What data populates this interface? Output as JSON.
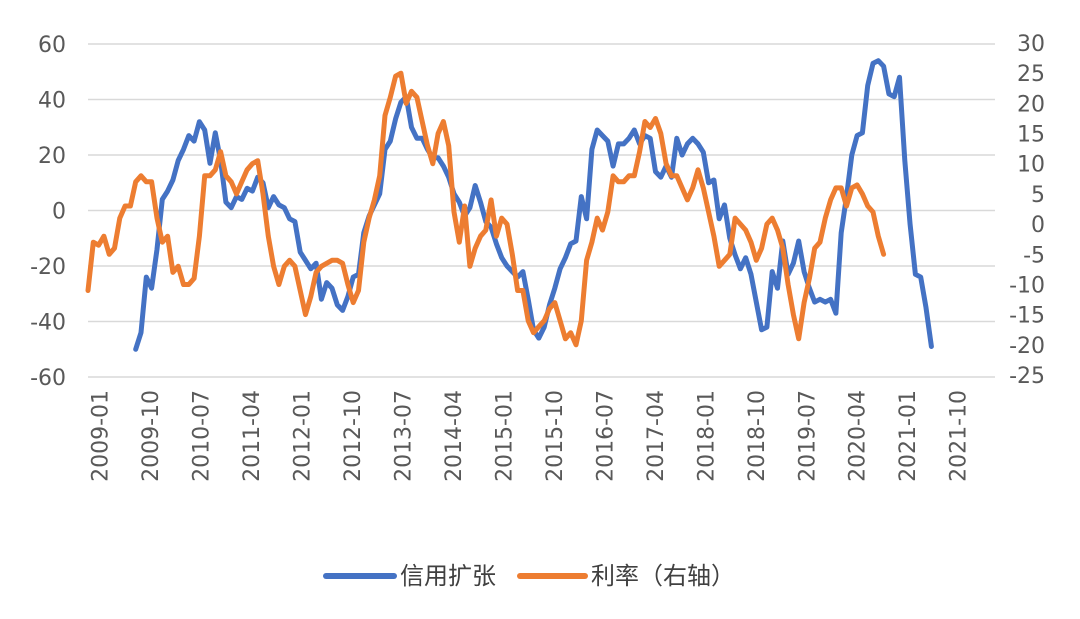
{
  "chart_data": {
    "type": "line",
    "title": "",
    "x_ticks": [
      "2009-01",
      "2009-10",
      "2010-07",
      "2011-04",
      "2012-01",
      "2012-10",
      "2013-07",
      "2014-04",
      "2015-01",
      "2015-10",
      "2016-07",
      "2017-04",
      "2018-01",
      "2018-10",
      "2019-07",
      "2020-04",
      "2021-01",
      "2021-10"
    ],
    "x_range": [
      0,
      171
    ],
    "y_left": {
      "ticks": [
        60,
        40,
        20,
        0,
        -20,
        -40,
        -60
      ],
      "range": [
        -60,
        60
      ]
    },
    "y_right": {
      "ticks": [
        30,
        25,
        20,
        15,
        10,
        5,
        0,
        -5,
        -10,
        -15,
        -20,
        -25
      ],
      "range": [
        -25,
        30
      ]
    },
    "grid": true,
    "legend_position": "bottom",
    "series": [
      {
        "name": "信用扩张",
        "axis": "left",
        "color": "#4472C4",
        "points": [
          [
            9,
            -50
          ],
          [
            10,
            -44
          ],
          [
            11,
            -24
          ],
          [
            12,
            -28
          ],
          [
            13,
            -14
          ],
          [
            14,
            4
          ],
          [
            15,
            7
          ],
          [
            16,
            11
          ],
          [
            17,
            18
          ],
          [
            18,
            22
          ],
          [
            19,
            27
          ],
          [
            20,
            25
          ],
          [
            21,
            32
          ],
          [
            22,
            29
          ],
          [
            23,
            17
          ],
          [
            24,
            28
          ],
          [
            25,
            18
          ],
          [
            26,
            3
          ],
          [
            27,
            1
          ],
          [
            28,
            5
          ],
          [
            29,
            4
          ],
          [
            30,
            8
          ],
          [
            31,
            7
          ],
          [
            32,
            12
          ],
          [
            33,
            10
          ],
          [
            34,
            1
          ],
          [
            35,
            5
          ],
          [
            36,
            2
          ],
          [
            37,
            1
          ],
          [
            38,
            -3
          ],
          [
            39,
            -4
          ],
          [
            40,
            -15
          ],
          [
            41,
            -18
          ],
          [
            42,
            -21
          ],
          [
            43,
            -19
          ],
          [
            44,
            -32
          ],
          [
            45,
            -26
          ],
          [
            46,
            -28
          ],
          [
            47,
            -34
          ],
          [
            48,
            -36
          ],
          [
            49,
            -31
          ],
          [
            50,
            -24
          ],
          [
            51,
            -23
          ],
          [
            52,
            -8
          ],
          [
            53,
            -2
          ],
          [
            54,
            2
          ],
          [
            55,
            6
          ],
          [
            56,
            22
          ],
          [
            57,
            25
          ],
          [
            58,
            33
          ],
          [
            59,
            39
          ],
          [
            60,
            41
          ],
          [
            61,
            30
          ],
          [
            62,
            26
          ],
          [
            63,
            26
          ],
          [
            64,
            22
          ],
          [
            65,
            19
          ],
          [
            66,
            19
          ],
          [
            67,
            16
          ],
          [
            68,
            12
          ],
          [
            69,
            6
          ],
          [
            70,
            3
          ],
          [
            71,
            -2
          ],
          [
            72,
            1
          ],
          [
            73,
            9
          ],
          [
            74,
            3
          ],
          [
            75,
            -4
          ],
          [
            76,
            -6
          ],
          [
            77,
            -12
          ],
          [
            78,
            -17
          ],
          [
            79,
            -20
          ],
          [
            80,
            -22
          ],
          [
            81,
            -24
          ],
          [
            82,
            -22
          ],
          [
            83,
            -32
          ],
          [
            84,
            -43
          ],
          [
            85,
            -46
          ],
          [
            86,
            -42
          ],
          [
            87,
            -34
          ],
          [
            88,
            -28
          ],
          [
            89,
            -21
          ],
          [
            90,
            -17
          ],
          [
            91,
            -12
          ],
          [
            92,
            -11
          ],
          [
            93,
            5
          ],
          [
            94,
            -3
          ],
          [
            95,
            22
          ],
          [
            96,
            29
          ],
          [
            97,
            27
          ],
          [
            98,
            25
          ],
          [
            99,
            16
          ],
          [
            100,
            24
          ],
          [
            101,
            24
          ],
          [
            102,
            26
          ],
          [
            103,
            29
          ],
          [
            104,
            24
          ],
          [
            105,
            27
          ],
          [
            106,
            26
          ],
          [
            107,
            14
          ],
          [
            108,
            12
          ],
          [
            109,
            16
          ],
          [
            110,
            12
          ],
          [
            111,
            26
          ],
          [
            112,
            20
          ],
          [
            113,
            24
          ],
          [
            114,
            26
          ],
          [
            115,
            24
          ],
          [
            116,
            21
          ],
          [
            117,
            10
          ],
          [
            118,
            11
          ],
          [
            119,
            -3
          ],
          [
            120,
            2
          ],
          [
            121,
            -10
          ],
          [
            122,
            -16
          ],
          [
            123,
            -21
          ],
          [
            124,
            -17
          ],
          [
            125,
            -23
          ],
          [
            126,
            -33
          ],
          [
            127,
            -43
          ],
          [
            128,
            -42
          ],
          [
            129,
            -22
          ],
          [
            130,
            -28
          ],
          [
            131,
            -11
          ],
          [
            132,
            -23
          ],
          [
            133,
            -19
          ],
          [
            134,
            -11
          ],
          [
            135,
            -22
          ],
          [
            136,
            -28
          ],
          [
            137,
            -33
          ],
          [
            138,
            -32
          ],
          [
            139,
            -33
          ],
          [
            140,
            -32
          ],
          [
            141,
            -37
          ],
          [
            142,
            -8
          ],
          [
            143,
            5
          ],
          [
            144,
            20
          ],
          [
            145,
            27
          ],
          [
            146,
            28
          ],
          [
            147,
            45
          ],
          [
            148,
            53
          ],
          [
            149,
            54
          ],
          [
            150,
            52
          ],
          [
            151,
            42
          ],
          [
            152,
            41
          ],
          [
            153,
            48
          ],
          [
            154,
            18
          ],
          [
            155,
            -5
          ],
          [
            156,
            -23
          ],
          [
            157,
            -24
          ],
          [
            158,
            -35
          ],
          [
            159,
            -49
          ]
        ]
      },
      {
        "name": "利率（右轴）",
        "axis": "right",
        "color": "#ED7D31",
        "points": [
          [
            0,
            -11
          ],
          [
            1,
            -3
          ],
          [
            2,
            -3.5
          ],
          [
            3,
            -2
          ],
          [
            4,
            -5
          ],
          [
            5,
            -4
          ],
          [
            6,
            1
          ],
          [
            7,
            3
          ],
          [
            8,
            3
          ],
          [
            9,
            7
          ],
          [
            10,
            8
          ],
          [
            11,
            7
          ],
          [
            12,
            7
          ],
          [
            13,
            1
          ],
          [
            14,
            -3
          ],
          [
            15,
            -2
          ],
          [
            16,
            -8
          ],
          [
            17,
            -7
          ],
          [
            18,
            -10
          ],
          [
            19,
            -10
          ],
          [
            20,
            -9
          ],
          [
            21,
            -2
          ],
          [
            22,
            8
          ],
          [
            23,
            8
          ],
          [
            24,
            9
          ],
          [
            25,
            12
          ],
          [
            26,
            8
          ],
          [
            27,
            7
          ],
          [
            28,
            5
          ],
          [
            29,
            7
          ],
          [
            30,
            9
          ],
          [
            31,
            10
          ],
          [
            32,
            10.5
          ],
          [
            33,
            5
          ],
          [
            34,
            -2
          ],
          [
            35,
            -7
          ],
          [
            36,
            -10
          ],
          [
            37,
            -7
          ],
          [
            38,
            -6
          ],
          [
            39,
            -7
          ],
          [
            40,
            -11
          ],
          [
            41,
            -15
          ],
          [
            42,
            -12
          ],
          [
            43,
            -8
          ],
          [
            44,
            -7
          ],
          [
            45,
            -6.5
          ],
          [
            46,
            -6
          ],
          [
            47,
            -6
          ],
          [
            48,
            -6.5
          ],
          [
            49,
            -10
          ],
          [
            50,
            -13
          ],
          [
            51,
            -11
          ],
          [
            52,
            -3
          ],
          [
            53,
            1
          ],
          [
            54,
            4
          ],
          [
            55,
            8
          ],
          [
            56,
            18
          ],
          [
            57,
            21
          ],
          [
            58,
            24.5
          ],
          [
            59,
            25
          ],
          [
            60,
            20
          ],
          [
            61,
            22
          ],
          [
            62,
            21
          ],
          [
            63,
            17
          ],
          [
            64,
            13
          ],
          [
            65,
            10
          ],
          [
            66,
            15
          ],
          [
            67,
            17
          ],
          [
            68,
            13
          ],
          [
            69,
            2
          ],
          [
            70,
            -3
          ],
          [
            71,
            3
          ],
          [
            72,
            -7
          ],
          [
            73,
            -4
          ],
          [
            74,
            -2
          ],
          [
            75,
            -1
          ],
          [
            76,
            4
          ],
          [
            77,
            -2
          ],
          [
            78,
            1
          ],
          [
            79,
            0
          ],
          [
            80,
            -5
          ],
          [
            81,
            -11
          ],
          [
            82,
            -11
          ],
          [
            83,
            -16
          ],
          [
            84,
            -18
          ],
          [
            85,
            -17
          ],
          [
            86,
            -16
          ],
          [
            87,
            -14
          ],
          [
            88,
            -13
          ],
          [
            89,
            -16
          ],
          [
            90,
            -19
          ],
          [
            91,
            -18
          ],
          [
            92,
            -20
          ],
          [
            93,
            -16
          ],
          [
            94,
            -6
          ],
          [
            95,
            -3
          ],
          [
            96,
            1
          ],
          [
            97,
            -1
          ],
          [
            98,
            2
          ],
          [
            99,
            8
          ],
          [
            100,
            7
          ],
          [
            101,
            7
          ],
          [
            102,
            8
          ],
          [
            103,
            8
          ],
          [
            104,
            12
          ],
          [
            105,
            17
          ],
          [
            106,
            16
          ],
          [
            107,
            17.5
          ],
          [
            108,
            15
          ],
          [
            109,
            10
          ],
          [
            110,
            8
          ],
          [
            111,
            8
          ],
          [
            112,
            6
          ],
          [
            113,
            4
          ],
          [
            114,
            6
          ],
          [
            115,
            9
          ],
          [
            116,
            6
          ],
          [
            117,
            2
          ],
          [
            118,
            -2
          ],
          [
            119,
            -7
          ],
          [
            120,
            -6
          ],
          [
            121,
            -5
          ],
          [
            122,
            1
          ],
          [
            123,
            0
          ],
          [
            124,
            -1
          ],
          [
            125,
            -3
          ],
          [
            126,
            -6
          ],
          [
            127,
            -4
          ],
          [
            128,
            0
          ],
          [
            129,
            1
          ],
          [
            130,
            -1
          ],
          [
            131,
            -4
          ],
          [
            132,
            -10
          ],
          [
            133,
            -15
          ],
          [
            134,
            -19
          ],
          [
            135,
            -13
          ],
          [
            136,
            -9
          ],
          [
            137,
            -4
          ],
          [
            138,
            -3
          ],
          [
            139,
            1
          ],
          [
            140,
            4
          ],
          [
            141,
            6
          ],
          [
            142,
            6
          ],
          [
            143,
            3
          ],
          [
            144,
            6
          ],
          [
            145,
            6.5
          ],
          [
            146,
            5
          ],
          [
            147,
            3
          ],
          [
            148,
            2
          ],
          [
            149,
            -2
          ],
          [
            150,
            -5
          ]
        ]
      }
    ]
  }
}
